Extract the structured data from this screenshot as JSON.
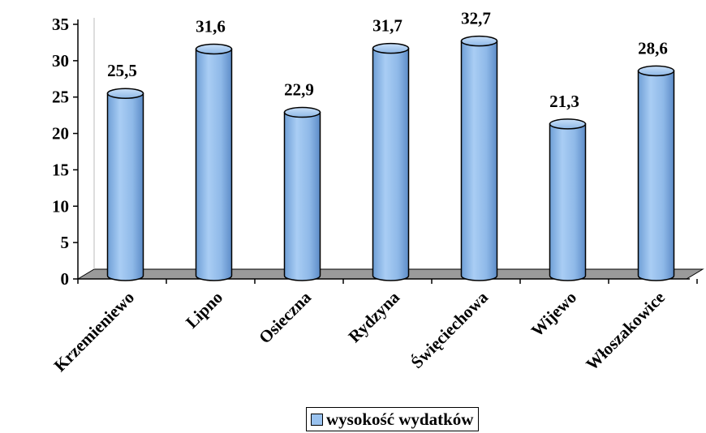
{
  "chart_data": {
    "type": "bar",
    "title": "",
    "xlabel": "",
    "ylabel": "",
    "categories": [
      "Krzemieniewo",
      "Lipno",
      "Osieczna",
      "Rydzyna",
      "Święciechowa",
      "Wijewo",
      "Włoszakowice"
    ],
    "series": [
      {
        "name": "wysokość wydatków",
        "values": [
          25.5,
          31.6,
          22.9,
          31.7,
          32.7,
          21.3,
          28.6
        ],
        "value_labels": [
          "25,5",
          "31,6",
          "22,9",
          "31,7",
          "32,7",
          "21,3",
          "28,6"
        ],
        "color": "#99c2ef"
      }
    ],
    "ylim": [
      0,
      35
    ],
    "yticks": [
      0,
      5,
      10,
      15,
      20,
      25,
      30,
      35
    ],
    "bar_shape": "cylinder",
    "floor_color": "#9a9a9a",
    "grid": false,
    "legend_position": "bottom"
  },
  "legend": {
    "label": "wysokość wydatków"
  }
}
